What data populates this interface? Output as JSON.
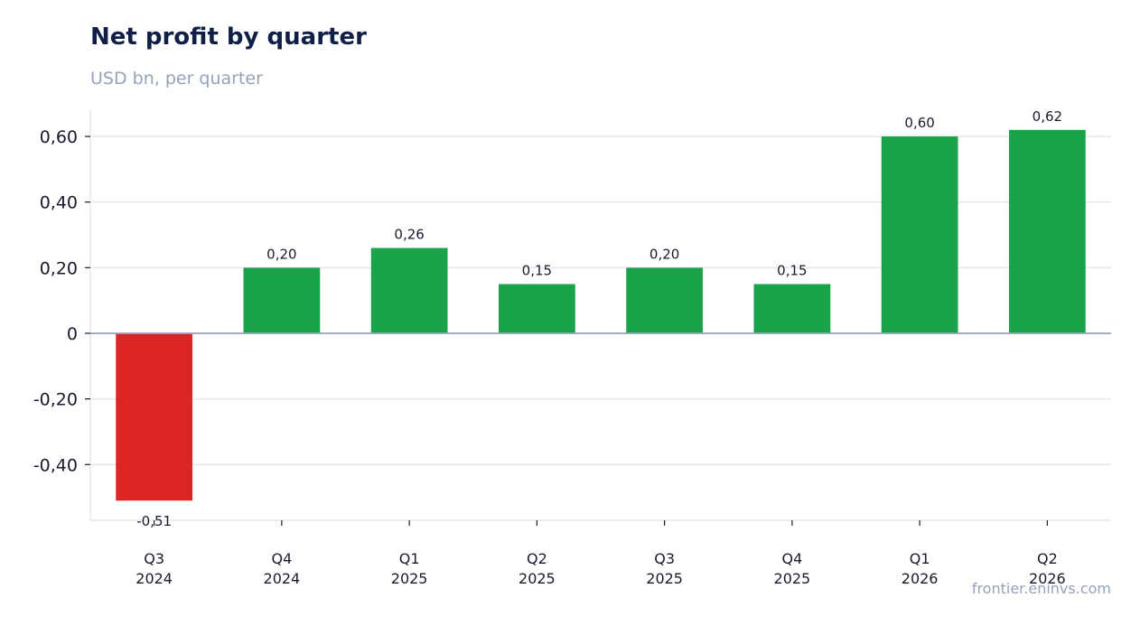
{
  "title": "Net profit by quarter",
  "subtitle": "USD bn, per quarter",
  "source": "frontier.eninvs.com",
  "colors": {
    "positive": "#1aa34a",
    "negative": "#dc2626",
    "grid": "#e5e7eb",
    "zero_line": "#94a3b8"
  },
  "chart_data": {
    "type": "bar",
    "title": "Net profit by quarter",
    "subtitle": "USD bn, per quarter",
    "categories": [
      [
        "Q3",
        "2024"
      ],
      [
        "Q4",
        "2024"
      ],
      [
        "Q1",
        "2025"
      ],
      [
        "Q2",
        "2025"
      ],
      [
        "Q3",
        "2025"
      ],
      [
        "Q4",
        "2025"
      ],
      [
        "Q1",
        "2026"
      ],
      [
        "Q2",
        "2026"
      ]
    ],
    "values": [
      -0.51,
      0.2,
      0.26,
      0.15,
      0.2,
      0.15,
      0.6,
      0.62
    ],
    "data_labels": [
      "-0,51",
      "0,20",
      "0,26",
      "0,15",
      "0,20",
      "0,15",
      "0,60",
      "0,62"
    ],
    "yticks": [
      -0.4,
      -0.2,
      0,
      0.2,
      0.4,
      0.6
    ],
    "ytick_labels": [
      "-0,40",
      "-0,20",
      "0",
      "0,20",
      "0,40",
      "0,60"
    ],
    "ylim": [
      -0.57,
      0.68
    ],
    "grid": true,
    "legend": "none"
  }
}
